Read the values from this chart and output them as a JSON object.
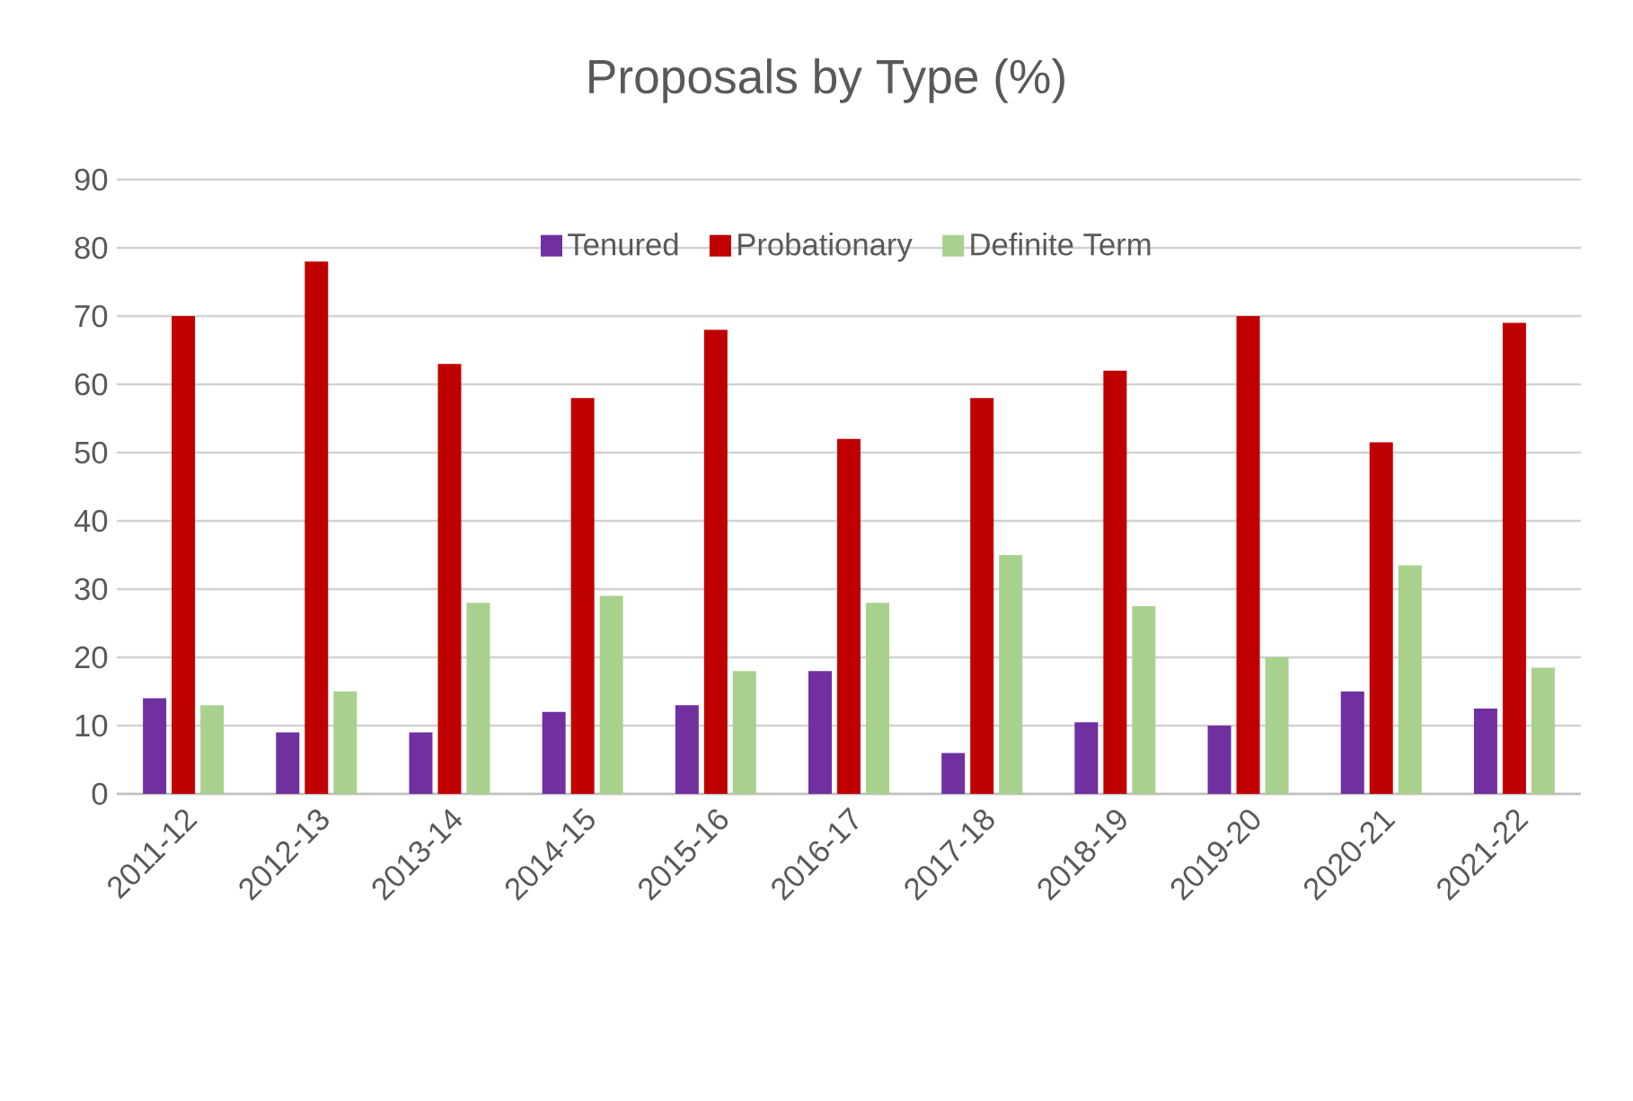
{
  "chart_data": {
    "type": "bar",
    "title": "Proposals by Type (%)",
    "categories": [
      "2011-12",
      "2012-13",
      "2013-14",
      "2014-15",
      "2015-16",
      "2016-17",
      "2017-18",
      "2018-19",
      "2019-20",
      "2020-21",
      "2021-22"
    ],
    "series": [
      {
        "name": "Tenured",
        "color": "#7030a0",
        "values": [
          14,
          9,
          9,
          12,
          13,
          18,
          6,
          10.5,
          10,
          15,
          12.5
        ]
      },
      {
        "name": "Probationary",
        "color": "#c00000",
        "values": [
          70,
          78,
          63,
          58,
          68,
          52,
          58,
          62,
          70,
          51.5,
          69
        ]
      },
      {
        "name": "Definite Term",
        "color": "#a9d18e",
        "values": [
          13,
          15,
          28,
          29,
          18,
          28,
          35,
          27.5,
          20,
          33.5,
          18.5
        ]
      }
    ],
    "ylim": [
      0,
      90
    ],
    "yticks": [
      0,
      10,
      20,
      30,
      40,
      50,
      60,
      70,
      80,
      90
    ],
    "grid": "y",
    "legend": "top"
  }
}
